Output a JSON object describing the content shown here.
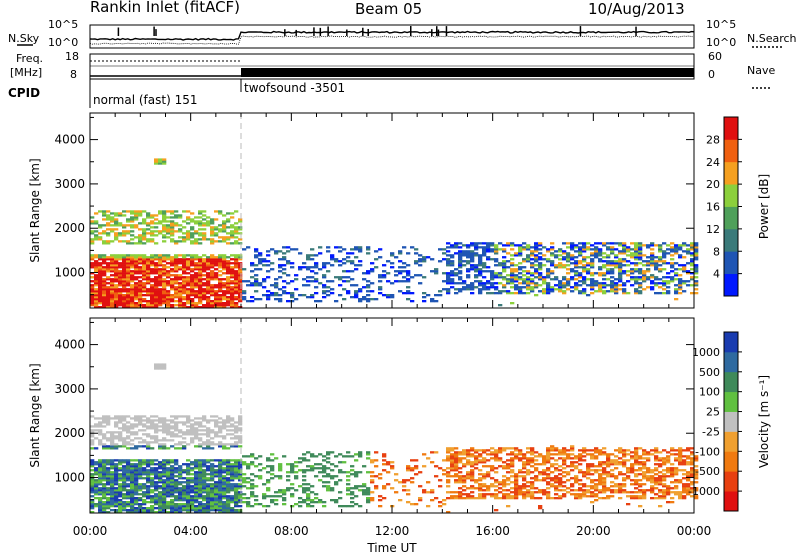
{
  "header": {
    "station": "Rankin Inlet (fitACF)",
    "beam": "Beam 05",
    "date": "10/Aug/2013"
  },
  "strip": {
    "nsky_label": "N.Sky",
    "nsky_ticks": [
      "10^5",
      "10^0"
    ],
    "nsearch_label": "N.Search",
    "nsearch_ticks": [
      "10^5",
      "10^0"
    ],
    "freq_label": "Freq.",
    "freq_unit": "[MHz]",
    "freq_ticks": [
      "18",
      "8"
    ],
    "nave_label": "Nave",
    "nave_ticks": [
      "60",
      "0"
    ],
    "cpid_label": "CPID",
    "cpid_modes": [
      {
        "name": "normal (fast) 151",
        "start_hour": 0,
        "end_hour": 6
      },
      {
        "name": "twofsound -3501",
        "start_hour": 6,
        "end_hour": 24
      }
    ]
  },
  "chart_data": [
    {
      "type": "heatmap",
      "title": "Power",
      "ylabel": "Slant Range [km]",
      "xlim_hours": [
        0,
        24
      ],
      "ylim": [
        200,
        4600
      ],
      "yticks": [
        1000,
        2000,
        3000,
        4000
      ],
      "colorbar": {
        "label": "Power [dB]",
        "ticks": [
          4,
          8,
          12,
          16,
          20,
          24,
          28
        ],
        "range": [
          0,
          32
        ],
        "colors": [
          "#0018ff",
          "#1f55b4",
          "#3a7a7a",
          "#4fa05a",
          "#8cd03c",
          "#f5a020",
          "#f06010",
          "#e01010"
        ]
      }
    },
    {
      "type": "heatmap",
      "title": "Velocity",
      "ylabel": "Slant Range [km]",
      "xlim_hours": [
        0,
        24
      ],
      "ylim": [
        200,
        4600
      ],
      "yticks": [
        1000,
        2000,
        3000,
        4000
      ],
      "xlabel": "Time UT",
      "xticks": [
        "00:00",
        "04:00",
        "08:00",
        "12:00",
        "16:00",
        "20:00",
        "00:00"
      ],
      "colorbar": {
        "label": "Velocity [m s⁻¹]",
        "ticks": [
          "1000",
          "500",
          "100",
          "25",
          "-25",
          "-100",
          "-500",
          "-1000"
        ],
        "colors": [
          "#1a3cb0",
          "#2f6aa0",
          "#3f8a5a",
          "#60c040",
          "#c0c0c0",
          "#f0a030",
          "#f07a10",
          "#e84010",
          "#e01010"
        ]
      }
    }
  ]
}
